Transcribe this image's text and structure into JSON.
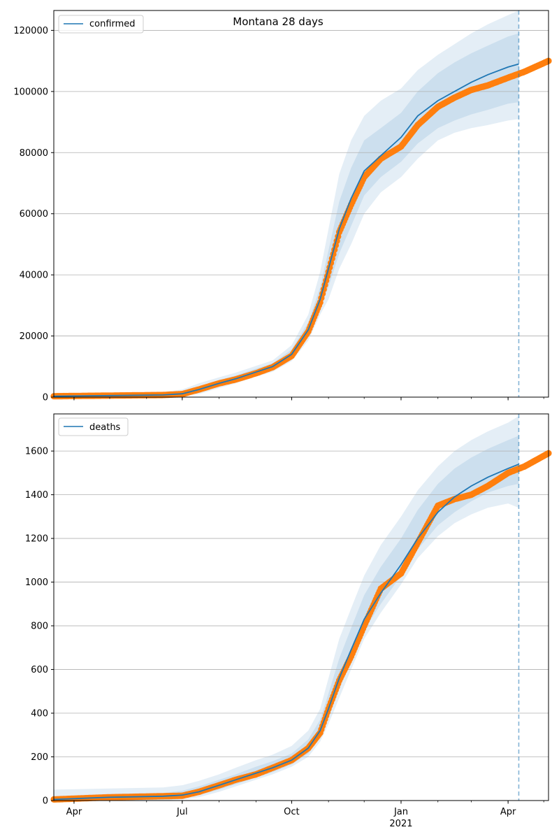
{
  "figure": {
    "title": "Montana 28 days"
  },
  "colors": {
    "model": "#1f77b4",
    "observed": "#ff7f0e",
    "grid": "#b0b0b0",
    "axis": "#000000"
  },
  "chart_data": [
    {
      "type": "line",
      "title": "Montana 28 days",
      "xlabel": "",
      "ylabel": "",
      "x_range": [
        "2020-03-15",
        "2021-05-05"
      ],
      "ylim": [
        0,
        126500
      ],
      "y_ticks": [
        0,
        20000,
        40000,
        60000,
        80000,
        100000,
        120000
      ],
      "x_ticks": [
        {
          "date": "2020-04-01",
          "label": "Apr",
          "sublabel": ""
        },
        {
          "date": "2020-07-01",
          "label": "Jul",
          "sublabel": ""
        },
        {
          "date": "2020-10-01",
          "label": "Oct",
          "sublabel": ""
        },
        {
          "date": "2021-01-01",
          "label": "Jan",
          "sublabel": "2021"
        },
        {
          "date": "2021-04-01",
          "label": "Apr",
          "sublabel": ""
        }
      ],
      "grid": "horizontal",
      "legend": {
        "position": "top-left",
        "entries": [
          "confirmed"
        ]
      },
      "forecast_start": "2021-04-10",
      "series": [
        {
          "name": "confirmed",
          "style": "line",
          "x": [
            "2020-03-15",
            "2020-05-01",
            "2020-06-15",
            "2020-07-01",
            "2020-07-15",
            "2020-08-01",
            "2020-08-15",
            "2020-09-01",
            "2020-09-15",
            "2020-10-01",
            "2020-10-15",
            "2020-10-25",
            "2020-11-01",
            "2020-11-10",
            "2020-11-20",
            "2020-12-01",
            "2020-12-15",
            "2021-01-01",
            "2021-01-15",
            "2021-02-01",
            "2021-02-15",
            "2021-03-01",
            "2021-03-15",
            "2021-04-01",
            "2021-04-10"
          ],
          "values": [
            300,
            500,
            700,
            1100,
            2500,
            4500,
            6000,
            8200,
            10000,
            14000,
            22000,
            32000,
            42000,
            55000,
            65000,
            74000,
            79000,
            85000,
            92000,
            97000,
            100000,
            103000,
            105500,
            108000,
            109000
          ]
        },
        {
          "name": "",
          "style": "markers",
          "x": [
            "2020-03-15",
            "2020-05-01",
            "2020-06-15",
            "2020-07-01",
            "2020-07-15",
            "2020-08-01",
            "2020-08-15",
            "2020-09-01",
            "2020-09-15",
            "2020-10-01",
            "2020-10-15",
            "2020-10-25",
            "2020-11-01",
            "2020-11-10",
            "2020-11-20",
            "2020-12-01",
            "2020-12-15",
            "2021-01-01",
            "2021-01-15",
            "2021-02-01",
            "2021-02-15",
            "2021-03-01",
            "2021-03-15",
            "2021-04-01",
            "2021-04-15",
            "2021-05-05"
          ],
          "values": [
            300,
            500,
            700,
            1000,
            2500,
            4500,
            5800,
            7800,
            9800,
            13500,
            21500,
            31000,
            41000,
            54000,
            63000,
            72000,
            78000,
            82000,
            89000,
            95000,
            98000,
            100500,
            102000,
            104500,
            106500,
            110000
          ]
        }
      ],
      "bands": [
        {
          "lower": [
            100,
            300,
            400,
            600,
            1500,
            3500,
            5000,
            7200,
            9000,
            12600,
            20000,
            29000,
            36000,
            47000,
            56000,
            66000,
            72000,
            77000,
            83000,
            88000,
            90500,
            92500,
            94000,
            96000,
            96500
          ],
          "upper": [
            500,
            800,
            1100,
            1700,
            3500,
            5600,
            7100,
            9300,
            11100,
            15600,
            24500,
            36000,
            48000,
            64000,
            75000,
            84000,
            88000,
            93000,
            100000,
            106000,
            109500,
            112500,
            115000,
            118000,
            119000
          ]
        },
        {
          "lower": [
            0,
            150,
            200,
            300,
            1000,
            3000,
            4500,
            6700,
            8300,
            11800,
            18500,
            27000,
            32000,
            42000,
            50000,
            60000,
            67000,
            72000,
            78000,
            84000,
            86500,
            88000,
            89000,
            90500,
            91000
          ],
          "upper": [
            900,
            1300,
            1700,
            2500,
            4500,
            6500,
            8000,
            10200,
            12000,
            17000,
            27000,
            41000,
            55000,
            73000,
            84000,
            92000,
            97000,
            101000,
            107000,
            112000,
            115500,
            119000,
            122000,
            125000,
            126500
          ]
        }
      ]
    },
    {
      "type": "line",
      "title": "",
      "xlabel": "",
      "ylabel": "",
      "x_range": [
        "2020-03-15",
        "2021-05-05"
      ],
      "ylim": [
        0,
        1770
      ],
      "y_ticks": [
        0,
        200,
        400,
        600,
        800,
        1000,
        1200,
        1400,
        1600
      ],
      "x_ticks": [
        {
          "date": "2020-04-01",
          "label": "Apr",
          "sublabel": ""
        },
        {
          "date": "2020-07-01",
          "label": "Jul",
          "sublabel": ""
        },
        {
          "date": "2020-10-01",
          "label": "Oct",
          "sublabel": ""
        },
        {
          "date": "2021-01-01",
          "label": "Jan",
          "sublabel": "2021"
        },
        {
          "date": "2021-04-01",
          "label": "Apr",
          "sublabel": ""
        }
      ],
      "grid": "horizontal",
      "legend": {
        "position": "top-left",
        "entries": [
          "deaths"
        ]
      },
      "forecast_start": "2021-04-10",
      "series": [
        {
          "name": "deaths",
          "style": "line",
          "x": [
            "2020-03-15",
            "2020-05-01",
            "2020-06-15",
            "2020-07-01",
            "2020-07-15",
            "2020-08-01",
            "2020-08-15",
            "2020-09-01",
            "2020-09-15",
            "2020-10-01",
            "2020-10-15",
            "2020-10-25",
            "2020-11-01",
            "2020-11-10",
            "2020-11-20",
            "2020-12-01",
            "2020-12-15",
            "2021-01-01",
            "2021-01-15",
            "2021-02-01",
            "2021-02-15",
            "2021-03-01",
            "2021-03-15",
            "2021-04-01",
            "2021-04-10"
          ],
          "values": [
            5,
            15,
            20,
            25,
            40,
            70,
            95,
            125,
            150,
            185,
            240,
            320,
            420,
            560,
            690,
            830,
            950,
            1080,
            1200,
            1320,
            1390,
            1440,
            1480,
            1520,
            1540
          ]
        },
        {
          "name": "",
          "style": "markers",
          "x": [
            "2020-03-15",
            "2020-05-01",
            "2020-06-15",
            "2020-07-01",
            "2020-07-15",
            "2020-08-01",
            "2020-08-15",
            "2020-09-01",
            "2020-09-15",
            "2020-10-01",
            "2020-10-15",
            "2020-10-25",
            "2020-11-01",
            "2020-11-10",
            "2020-11-20",
            "2020-12-01",
            "2020-12-15",
            "2021-01-01",
            "2021-01-15",
            "2021-02-01",
            "2021-02-15",
            "2021-03-01",
            "2021-03-15",
            "2021-04-01",
            "2021-04-15",
            "2021-05-05"
          ],
          "values": [
            5,
            15,
            20,
            22,
            40,
            70,
            95,
            120,
            150,
            185,
            240,
            310,
            420,
            550,
            660,
            800,
            970,
            1040,
            1180,
            1350,
            1380,
            1400,
            1440,
            1500,
            1530,
            1590
          ]
        }
      ],
      "bands": [
        {
          "lower": [
            0,
            5,
            8,
            10,
            25,
            50,
            75,
            105,
            130,
            165,
            215,
            290,
            380,
            510,
            640,
            780,
            900,
            1030,
            1150,
            1260,
            1320,
            1370,
            1410,
            1440,
            1450
          ],
          "upper": [
            20,
            30,
            35,
            45,
            65,
            95,
            120,
            155,
            180,
            215,
            280,
            370,
            490,
            650,
            790,
            940,
            1070,
            1200,
            1330,
            1450,
            1520,
            1570,
            1610,
            1650,
            1670
          ]
        },
        {
          "lower": [
            0,
            0,
            0,
            5,
            15,
            40,
            65,
            95,
            120,
            155,
            200,
            270,
            350,
            470,
            600,
            740,
            860,
            990,
            1110,
            1210,
            1270,
            1310,
            1340,
            1360,
            1340
          ],
          "upper": [
            50,
            55,
            60,
            70,
            90,
            120,
            150,
            185,
            210,
            250,
            320,
            420,
            560,
            740,
            880,
            1030,
            1170,
            1300,
            1420,
            1530,
            1600,
            1650,
            1690,
            1730,
            1760
          ]
        }
      ]
    }
  ]
}
